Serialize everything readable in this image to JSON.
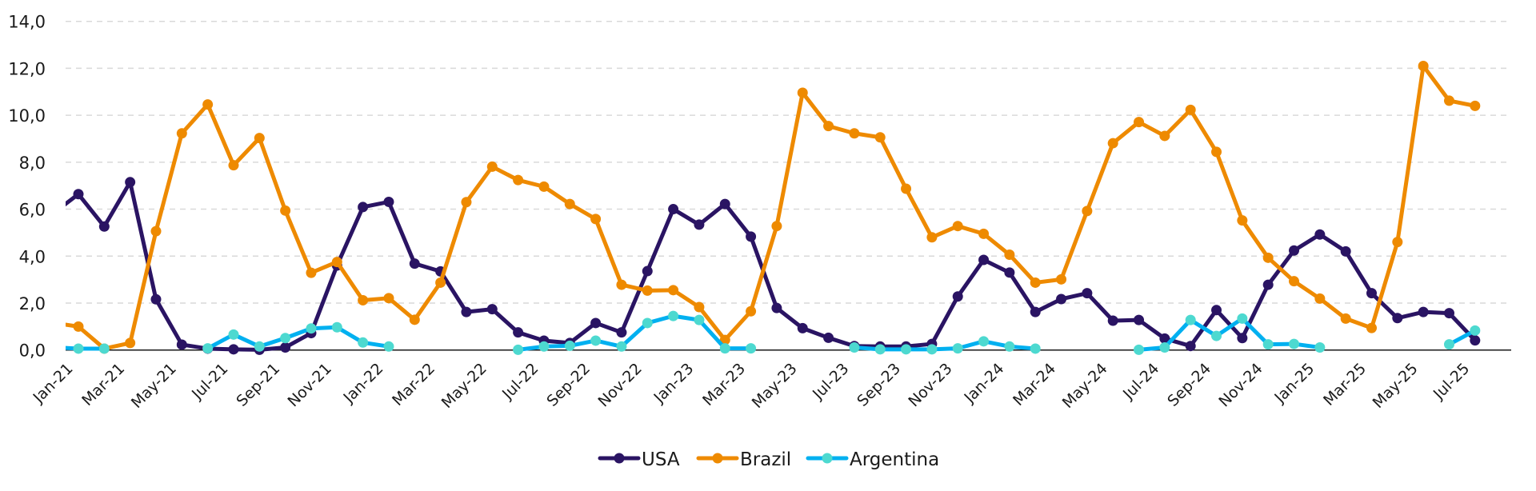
{
  "chart_data": {
    "type": "line",
    "title": "",
    "xlabel": "",
    "ylabel": "",
    "ylim": [
      0,
      14
    ],
    "y_ticks": [
      "0,0",
      "2,0",
      "4,0",
      "6,0",
      "8,0",
      "10,0",
      "12,0",
      "14,0"
    ],
    "y_tick_values": [
      0,
      2,
      4,
      6,
      8,
      10,
      12,
      14
    ],
    "grid": "horizontal dashed",
    "legend_position": "bottom",
    "categories": [
      "Dec-20",
      "Jan-21",
      "Feb-21",
      "Mar-21",
      "Apr-21",
      "May-21",
      "Jun-21",
      "Jul-21",
      "Aug-21",
      "Sep-21",
      "Oct-21",
      "Nov-21",
      "Dec-21",
      "Jan-22",
      "Feb-22",
      "Mar-22",
      "Apr-22",
      "May-22",
      "Jun-22",
      "Jul-22",
      "Aug-22",
      "Sep-22",
      "Oct-22",
      "Nov-22",
      "Dec-22",
      "Jan-23",
      "Feb-23",
      "Mar-23",
      "Apr-23",
      "May-23",
      "Jun-23",
      "Jul-23",
      "Aug-23",
      "Sep-23",
      "Oct-23",
      "Nov-23",
      "Dec-23",
      "Jan-24",
      "Feb-24",
      "Mar-24",
      "Apr-24",
      "May-24",
      "Jun-24",
      "Jul-24",
      "Aug-24",
      "Sep-24",
      "Oct-24",
      "Nov-24",
      "Dec-24",
      "Jan-25",
      "Feb-25",
      "Mar-25",
      "Apr-25",
      "May-25",
      "Jun-25",
      "Jul-25"
    ],
    "x_tick_labels": [
      "Jan-21",
      "Mar-21",
      "May-21",
      "Jul-21",
      "Sep-21",
      "Nov-21",
      "Jan-22",
      "Mar-22",
      "May-22",
      "Jul-22",
      "Sep-22",
      "Nov-22",
      "Jan-23",
      "Mar-23",
      "May-23",
      "Jul-23",
      "Sep-23",
      "Nov-23",
      "Jan-24",
      "Mar-24",
      "May-24",
      "Jul-24",
      "Sep-24",
      "Nov-24",
      "Jan-25",
      "Mar-25",
      "May-25",
      "Jul-25"
    ],
    "series": [
      {
        "name": "USA",
        "color": "#2a1463",
        "marker_color": "#2a1463",
        "values": [
          5.8,
          6.64,
          5.26,
          7.15,
          2.16,
          0.23,
          0.06,
          0.03,
          0.01,
          0.11,
          0.72,
          3.6,
          6.09,
          6.31,
          3.68,
          3.35,
          1.62,
          1.74,
          0.75,
          0.4,
          0.3,
          1.15,
          0.75,
          3.36,
          6.0,
          5.34,
          6.22,
          4.83,
          1.79,
          0.93,
          0.52,
          0.17,
          0.15,
          0.15,
          0.26,
          2.28,
          3.84,
          3.3,
          1.62,
          2.17,
          2.42,
          1.25,
          1.28,
          0.49,
          0.17,
          1.7,
          0.51,
          2.78,
          4.24,
          4.92,
          4.2,
          2.42,
          1.36,
          1.62,
          1.57,
          0.41
        ]
      },
      {
        "name": "Brazil",
        "color": "#ee8a00",
        "marker_color": "#ee8a00",
        "values": [
          1.16,
          1.0,
          0.06,
          0.3,
          5.06,
          9.23,
          10.46,
          7.87,
          9.03,
          5.94,
          3.29,
          3.75,
          2.12,
          2.21,
          1.29,
          2.87,
          6.3,
          7.81,
          7.24,
          6.96,
          6.22,
          5.58,
          2.78,
          2.53,
          2.55,
          1.83,
          0.43,
          1.65,
          5.28,
          10.96,
          9.54,
          9.23,
          9.06,
          6.87,
          4.8,
          5.28,
          4.95,
          4.06,
          2.87,
          3.01,
          5.92,
          8.81,
          9.71,
          9.12,
          10.23,
          8.44,
          5.52,
          3.93,
          2.93,
          2.19,
          1.34,
          0.94,
          4.6,
          12.1,
          10.62,
          10.4
        ]
      },
      {
        "name": "Argentina",
        "color": "#00b0f0",
        "marker_color": "#4dd9d0",
        "values": [
          0.12,
          0.06,
          0.06,
          null,
          null,
          null,
          0.07,
          0.66,
          0.15,
          0.51,
          0.92,
          0.97,
          0.32,
          0.15,
          null,
          null,
          null,
          null,
          0.01,
          0.15,
          0.18,
          0.4,
          0.15,
          1.15,
          1.45,
          1.28,
          0.07,
          0.07,
          null,
          null,
          null,
          0.11,
          0.03,
          0.03,
          0.03,
          0.07,
          0.37,
          0.15,
          0.06,
          null,
          null,
          null,
          0.01,
          0.11,
          1.28,
          0.6,
          1.34,
          0.24,
          0.26,
          0.11,
          null,
          null,
          null,
          null,
          0.24,
          0.83
        ]
      }
    ]
  }
}
